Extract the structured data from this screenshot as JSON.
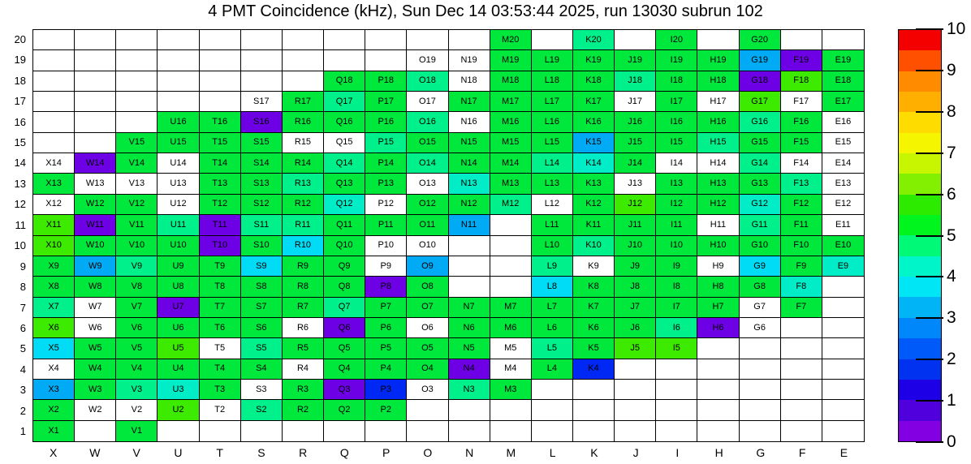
{
  "title": "4 PMT Coincidence (kHz), Sun Dec 14 03:53:44 2025, run 13030 subrun 102",
  "chart_data": {
    "type": "heatmap",
    "title": "4 PMT Coincidence (kHz), Sun Dec 14 03:53:44 2025, run 13030 subrun 102",
    "x_axis": {
      "categories": [
        "X",
        "W",
        "V",
        "U",
        "T",
        "S",
        "R",
        "Q",
        "P",
        "O",
        "N",
        "M",
        "L",
        "K",
        "J",
        "I",
        "H",
        "G",
        "F",
        "E"
      ]
    },
    "y_axis": {
      "categories": [
        "20",
        "19",
        "18",
        "17",
        "16",
        "15",
        "14",
        "13",
        "12",
        "11",
        "10",
        "9",
        "8",
        "7",
        "6",
        "5",
        "4",
        "3",
        "2",
        "1"
      ]
    },
    "colorbar": {
      "min": 0,
      "max": 10,
      "tick_labels": [
        "0",
        "1",
        "2",
        "3",
        "4",
        "5",
        "6",
        "7",
        "8",
        "9",
        "10"
      ],
      "bands_bottom_to_top": [
        "#8200E1",
        "#5000DC",
        "#1E00E6",
        "#0032F0",
        "#005AFA",
        "#0087FA",
        "#00B4F5",
        "#00E6F5",
        "#00F5C8",
        "#00FA78",
        "#00F51E",
        "#2CEB00",
        "#82F000",
        "#C8F500",
        "#F5F500",
        "#FFDC00",
        "#FFAF00",
        "#FF8C00",
        "#FF5000",
        "#F50000"
      ]
    },
    "palette": {
      "g": "#00E83C",
      "sg": "#00F08C",
      "tq": "#00EDC8",
      "cy": "#00DCF5",
      "lb": "#00AAF5",
      "db": "#0028F5",
      "vi": "#6E00E6",
      "yg": "#3CEB00",
      "w": "#FFFFFF"
    },
    "approx_value_by_code": {
      "vi": 0.5,
      "db": 1.8,
      "lb": 3.2,
      "cy": 3.7,
      "tq": 4.2,
      "sg": 4.8,
      "g": 5.3,
      "yg": 5.8,
      "w": null
    },
    "rows_top_to_bottom": [
      {
        "y": "20",
        "cells": [
          "",
          "",
          "",
          "",
          "",
          "",
          "",
          "",
          "",
          "",
          "",
          "M20:g",
          "",
          "K20:sg",
          "",
          "I20:g",
          "",
          "G20:g",
          "",
          ""
        ]
      },
      {
        "y": "19",
        "cells": [
          "",
          "",
          "",
          "",
          "",
          "",
          "",
          "",
          "",
          "O19:w",
          "N19:w",
          "M19:g",
          "L19:g",
          "K19:g",
          "J19:g",
          "I19:g",
          "H19:g",
          "G19:lb",
          "F19:vi",
          "E19:g"
        ]
      },
      {
        "y": "18",
        "cells": [
          "",
          "",
          "",
          "",
          "",
          "",
          "",
          "Q18:g",
          "P18:g",
          "O18:sg",
          "N18:w",
          "M18:g",
          "L18:g",
          "K18:g",
          "J18:sg",
          "I18:g",
          "H18:g",
          "G18:vi",
          "F18:yg",
          "E18:g"
        ]
      },
      {
        "y": "17",
        "cells": [
          "",
          "",
          "",
          "",
          "",
          "S17:w",
          "R17:g",
          "Q17:sg",
          "P17:g",
          "O17:w",
          "N17:g",
          "M17:g",
          "L17:g",
          "K17:g",
          "J17:w",
          "I17:g",
          "H17:w",
          "G17:yg",
          "F17:w",
          "E17:g"
        ]
      },
      {
        "y": "16",
        "cells": [
          "",
          "",
          "",
          "U16:g",
          "T16:g",
          "S16:vi",
          "R16:g",
          "Q16:g",
          "P16:g",
          "O16:sg",
          "N16:w",
          "M16:g",
          "L16:g",
          "K16:g",
          "J16:g",
          "I16:g",
          "H16:g",
          "G16:sg",
          "F16:g",
          "E16:w"
        ]
      },
      {
        "y": "15",
        "cells": [
          "",
          "",
          "V15:g",
          "U15:g",
          "T15:g",
          "S15:g",
          "R15:w",
          "Q15:w",
          "P15:sg",
          "O15:g",
          "N15:g",
          "M15:g",
          "L15:g",
          "K15:lb",
          "J15:g",
          "I15:g",
          "H15:sg",
          "G15:g",
          "F15:g",
          "E15:w"
        ]
      },
      {
        "y": "14",
        "cells": [
          "X14:w",
          "W14:vi",
          "V14:g",
          "U14:w",
          "T14:g",
          "S14:g",
          "R14:g",
          "Q14:sg",
          "P14:g",
          "O14:sg",
          "N14:g",
          "M14:g",
          "L14:sg",
          "K14:tq",
          "J14:g",
          "I14:w",
          "H14:w",
          "G14:sg",
          "F14:w",
          "E14:w"
        ]
      },
      {
        "y": "13",
        "cells": [
          "X13:g",
          "W13:w",
          "V13:w",
          "U13:w",
          "T13:g",
          "S13:g",
          "R13:sg",
          "Q13:g",
          "P13:g",
          "O13:w",
          "N13:tq",
          "M13:g",
          "L13:g",
          "K13:g",
          "J13:w",
          "I13:g",
          "H13:g",
          "G13:g",
          "F13:sg",
          "E13:w"
        ]
      },
      {
        "y": "12",
        "cells": [
          "X12:w",
          "W12:g",
          "V12:g",
          "U12:w",
          "T12:g",
          "S12:g",
          "R12:g",
          "Q12:tq",
          "P12:w",
          "O12:g",
          "N12:g",
          "M12:sg",
          "L12:w",
          "K12:g",
          "J12:yg",
          "I12:g",
          "H12:g",
          "G12:tq",
          "F12:g",
          "E12:w"
        ]
      },
      {
        "y": "11",
        "cells": [
          "X11:yg",
          "W11:vi",
          "V11:g",
          "U11:sg",
          "T11:vi",
          "S11:sg",
          "R11:sg",
          "Q11:g",
          "P11:g",
          "O11:g",
          "N11:lb",
          "",
          "L11:g",
          "K11:g",
          "J11:g",
          "I11:g",
          "H11:w",
          "G11:sg",
          "F11:g",
          "E11:w"
        ]
      },
      {
        "y": "10",
        "cells": [
          "X10:yg",
          "W10:g",
          "V10:g",
          "U10:g",
          "T10:vi",
          "S10:g",
          "R10:cy",
          "Q10:g",
          "P10:w",
          "O10:w",
          "",
          "",
          "L10:g",
          "K10:sg",
          "J10:g",
          "I10:g",
          "H10:g",
          "G10:g",
          "F10:g",
          "E10:g"
        ]
      },
      {
        "y": "9",
        "cells": [
          "X9:g",
          "W9:lb",
          "V9:sg",
          "U9:g",
          "T9:g",
          "S9:cy",
          "R9:g",
          "Q9:g",
          "P9:w",
          "O9:lb",
          "",
          "",
          "L9:sg",
          "K9:w",
          "J9:g",
          "I9:g",
          "H9:w",
          "G9:cy",
          "F9:g",
          "E9:tq"
        ]
      },
      {
        "y": "8",
        "cells": [
          "X8:g",
          "W8:g",
          "V8:g",
          "U8:g",
          "T8:g",
          "S8:g",
          "R8:g",
          "Q8:g",
          "P8:vi",
          "O8:g",
          "",
          "",
          "L8:cy",
          "K8:g",
          "J8:g",
          "I8:g",
          "H8:g",
          "G8:g",
          "F8:tq",
          ""
        ]
      },
      {
        "y": "7",
        "cells": [
          "X7:sg",
          "W7:w",
          "V7:g",
          "U7:vi",
          "T7:g",
          "S7:g",
          "R7:g",
          "Q7:sg",
          "P7:g",
          "O7:g",
          "N7:g",
          "M7:g",
          "L7:g",
          "K7:g",
          "J7:g",
          "I7:g",
          "H7:g",
          "G7:w",
          "F7:g",
          ""
        ]
      },
      {
        "y": "6",
        "cells": [
          "X6:yg",
          "W6:w",
          "V6:g",
          "U6:g",
          "T6:g",
          "S6:g",
          "R6:w",
          "Q6:vi",
          "P6:g",
          "O6:w",
          "N6:g",
          "M6:g",
          "L6:g",
          "K6:g",
          "J6:g",
          "I6:sg",
          "H6:vi",
          "G6:w",
          "",
          ""
        ]
      },
      {
        "y": "5",
        "cells": [
          "X5:cy",
          "W5:g",
          "V5:g",
          "U5:yg",
          "T5:w",
          "S5:sg",
          "R5:g",
          "Q5:g",
          "P5:g",
          "O5:g",
          "N5:g",
          "M5:w",
          "L5:sg",
          "K5:g",
          "J5:yg",
          "I5:yg",
          "",
          "",
          "",
          ""
        ]
      },
      {
        "y": "4",
        "cells": [
          "X4:w",
          "W4:g",
          "V4:g",
          "U4:g",
          "T4:g",
          "S4:g",
          "R4:w",
          "Q4:g",
          "P4:g",
          "O4:g",
          "N4:vi",
          "M4:w",
          "L4:g",
          "K4:db",
          "",
          "",
          "",
          "",
          "",
          ""
        ]
      },
      {
        "y": "3",
        "cells": [
          "X3:lb",
          "W3:g",
          "V3:sg",
          "U3:tq",
          "T3:g",
          "S3:w",
          "R3:g",
          "Q3:vi",
          "P3:db",
          "O3:w",
          "N3:sg",
          "M3:g",
          "",
          "",
          "",
          "",
          "",
          "",
          "",
          ""
        ]
      },
      {
        "y": "2",
        "cells": [
          "X2:g",
          "W2:w",
          "V2:w",
          "U2:yg",
          "T2:w",
          "S2:sg",
          "R2:g",
          "Q2:g",
          "P2:g",
          "",
          "",
          "",
          "",
          "",
          "",
          "",
          "",
          "",
          "",
          ""
        ]
      },
      {
        "y": "1",
        "cells": [
          "X1:g",
          "",
          "V1:g",
          "",
          "",
          "",
          "",
          "",
          "",
          "",
          "",
          "",
          "",
          "",
          "",
          "",
          "",
          "",
          "",
          ""
        ]
      }
    ]
  }
}
